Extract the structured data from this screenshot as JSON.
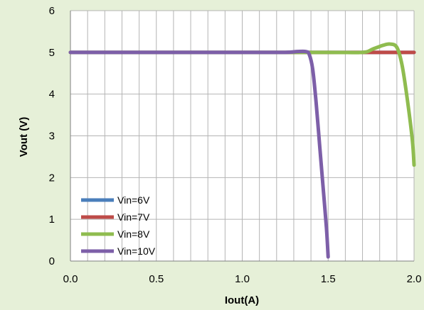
{
  "chart_data": {
    "type": "line",
    "title": "",
    "xlabel": "Iout(A)",
    "ylabel": "Vout (V)",
    "xlim": [
      0,
      2.0
    ],
    "ylim": [
      0,
      6
    ],
    "x_ticks": [
      "0.0",
      "0.5",
      "1.0",
      "1.5",
      "2.0"
    ],
    "y_ticks": [
      "0",
      "1",
      "2",
      "3",
      "4",
      "5",
      "6"
    ],
    "grid": true,
    "legend_position": "bottom-left",
    "colors": {
      "background": "#e6f0d8",
      "plot_background": "#ffffff",
      "grid": "#b4b4b4"
    },
    "series": [
      {
        "name": "Vin=6V",
        "color": "#4a7ebb",
        "points": [
          [
            0,
            5.0
          ],
          [
            1.0,
            5.0
          ],
          [
            2.0,
            5.0
          ]
        ]
      },
      {
        "name": "Vin=7V",
        "color": "#be4b48",
        "points": [
          [
            0,
            5.0
          ],
          [
            1.0,
            5.0
          ],
          [
            1.5,
            5.0
          ],
          [
            2.0,
            5.0
          ]
        ]
      },
      {
        "name": "Vin=8V",
        "color": "#8fbc4f",
        "points": [
          [
            0,
            5.0
          ],
          [
            1.0,
            5.0
          ],
          [
            1.5,
            5.0
          ],
          [
            1.7,
            5.0
          ],
          [
            1.76,
            5.08
          ],
          [
            1.82,
            5.17
          ],
          [
            1.86,
            5.2
          ],
          [
            1.9,
            5.12
          ],
          [
            1.93,
            4.7
          ],
          [
            1.96,
            3.9
          ],
          [
            1.99,
            2.9
          ],
          [
            2.0,
            2.3
          ]
        ]
      },
      {
        "name": "Vin=10V",
        "color": "#7d5fa8",
        "points": [
          [
            0,
            5.0
          ],
          [
            1.0,
            5.0
          ],
          [
            1.25,
            5.0
          ],
          [
            1.32,
            5.02
          ],
          [
            1.37,
            5.02
          ],
          [
            1.39,
            4.95
          ],
          [
            1.41,
            4.6
          ],
          [
            1.43,
            3.8
          ],
          [
            1.45,
            2.8
          ],
          [
            1.47,
            1.8
          ],
          [
            1.49,
            0.8
          ],
          [
            1.5,
            0.1
          ]
        ]
      }
    ]
  }
}
